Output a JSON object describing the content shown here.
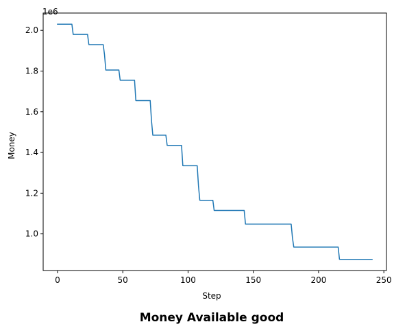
{
  "figure": {
    "title": "Money Available good"
  },
  "chart_data": {
    "type": "line",
    "title": "Money Available good",
    "xlabel": "Step",
    "ylabel": "Money",
    "y_offset_label": "1e6",
    "xlim": [
      -11,
      252
    ],
    "ylim": [
      820000,
      2085000
    ],
    "xticks": [
      0,
      50,
      100,
      150,
      200,
      250
    ],
    "xtick_labels": [
      "0",
      "50",
      "100",
      "150",
      "200",
      "250"
    ],
    "yticks": [
      1000000,
      1200000,
      1400000,
      1600000,
      1800000,
      2000000
    ],
    "ytick_labels": [
      "1.0",
      "1.2",
      "1.4",
      "1.6",
      "1.8",
      "2.0"
    ],
    "grid": false,
    "legend": "none",
    "series": [
      {
        "color": "#1f77b4",
        "x": [
          0,
          11,
          12,
          23,
          24,
          35,
          36,
          37,
          47,
          48,
          59,
          60,
          71,
          72,
          73,
          83,
          84,
          95,
          96,
          107,
          108,
          109,
          119,
          120,
          143,
          144,
          179,
          180,
          181,
          215,
          216,
          241
        ],
        "y": [
          2030000,
          2030000,
          1980000,
          1980000,
          1930000,
          1930000,
          1880000,
          1805000,
          1805000,
          1755000,
          1755000,
          1655000,
          1655000,
          1555000,
          1485000,
          1485000,
          1435000,
          1435000,
          1335000,
          1335000,
          1235000,
          1165000,
          1165000,
          1115000,
          1115000,
          1048000,
          1048000,
          980000,
          935000,
          935000,
          875000,
          875000
        ]
      }
    ]
  }
}
